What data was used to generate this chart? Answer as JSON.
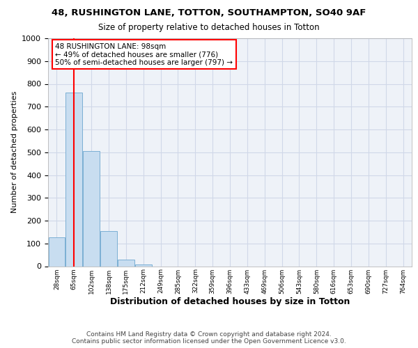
{
  "title1": "48, RUSHINGTON LANE, TOTTON, SOUTHAMPTON, SO40 9AF",
  "title2": "Size of property relative to detached houses in Totton",
  "xlabel": "Distribution of detached houses by size in Totton",
  "ylabel": "Number of detached properties",
  "footer": "Contains HM Land Registry data © Crown copyright and database right 2024.\nContains public sector information licensed under the Open Government Licence v3.0.",
  "bin_labels": [
    "28sqm",
    "65sqm",
    "102sqm",
    "138sqm",
    "175sqm",
    "212sqm",
    "249sqm",
    "285sqm",
    "322sqm",
    "359sqm",
    "396sqm",
    "433sqm",
    "469sqm",
    "506sqm",
    "543sqm",
    "580sqm",
    "616sqm",
    "653sqm",
    "690sqm",
    "727sqm",
    "764sqm"
  ],
  "bar_values": [
    128,
    762,
    505,
    153,
    28,
    8,
    0,
    0,
    0,
    0,
    0,
    0,
    0,
    0,
    0,
    0,
    0,
    0,
    0,
    0,
    0
  ],
  "bar_color": "#c8ddf0",
  "bar_edge_color": "#7bafd4",
  "vline_x": 1.5,
  "annotation_line1": "48 RUSHINGTON LANE: 98sqm",
  "annotation_line2": "← 49% of detached houses are smaller (776)",
  "annotation_line3": "50% of semi-detached houses are larger (797) →",
  "annotation_box_color": "white",
  "annotation_box_edge_color": "red",
  "vline_color": "red",
  "ylim": [
    0,
    1000
  ],
  "yticks": [
    0,
    100,
    200,
    300,
    400,
    500,
    600,
    700,
    800,
    900,
    1000
  ],
  "grid_color": "#d0d8e8",
  "background_color": "#eef2f8"
}
